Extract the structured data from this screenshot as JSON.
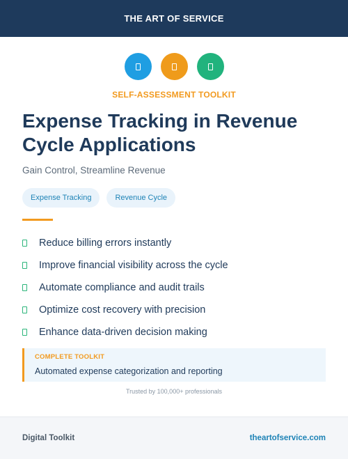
{
  "header": {
    "brand": "THE ART OF SERVICE"
  },
  "icons": [
    {
      "name": "document-icon",
      "color": "#1f9ee2"
    },
    {
      "name": "document-icon",
      "color": "#ef9b1b"
    },
    {
      "name": "document-icon",
      "color": "#21b37d"
    }
  ],
  "kicker": "SELF-ASSESSMENT TOOLKIT",
  "title": "Expense Tracking in Revenue Cycle Applications",
  "subtitle": "Gain Control, Streamline Revenue",
  "tags": [
    "Expense Tracking",
    "Revenue Cycle"
  ],
  "benefits": [
    "Reduce billing errors instantly",
    "Improve financial visibility across the cycle",
    "Automate compliance and audit trails",
    "Optimize cost recovery with precision",
    "Enhance data-driven decision making"
  ],
  "callout": {
    "kicker": "COMPLETE TOOLKIT",
    "text": "Automated expense categorization and reporting"
  },
  "trusted": "Trusted by 100,000+ professionals",
  "footer": {
    "left": "Digital Toolkit",
    "right": "theartofservice.com"
  },
  "colors": {
    "navy": "#1e3a5c",
    "accent_orange": "#f29a1f",
    "accent_green": "#2bb57a",
    "link_blue": "#1e83b6"
  }
}
